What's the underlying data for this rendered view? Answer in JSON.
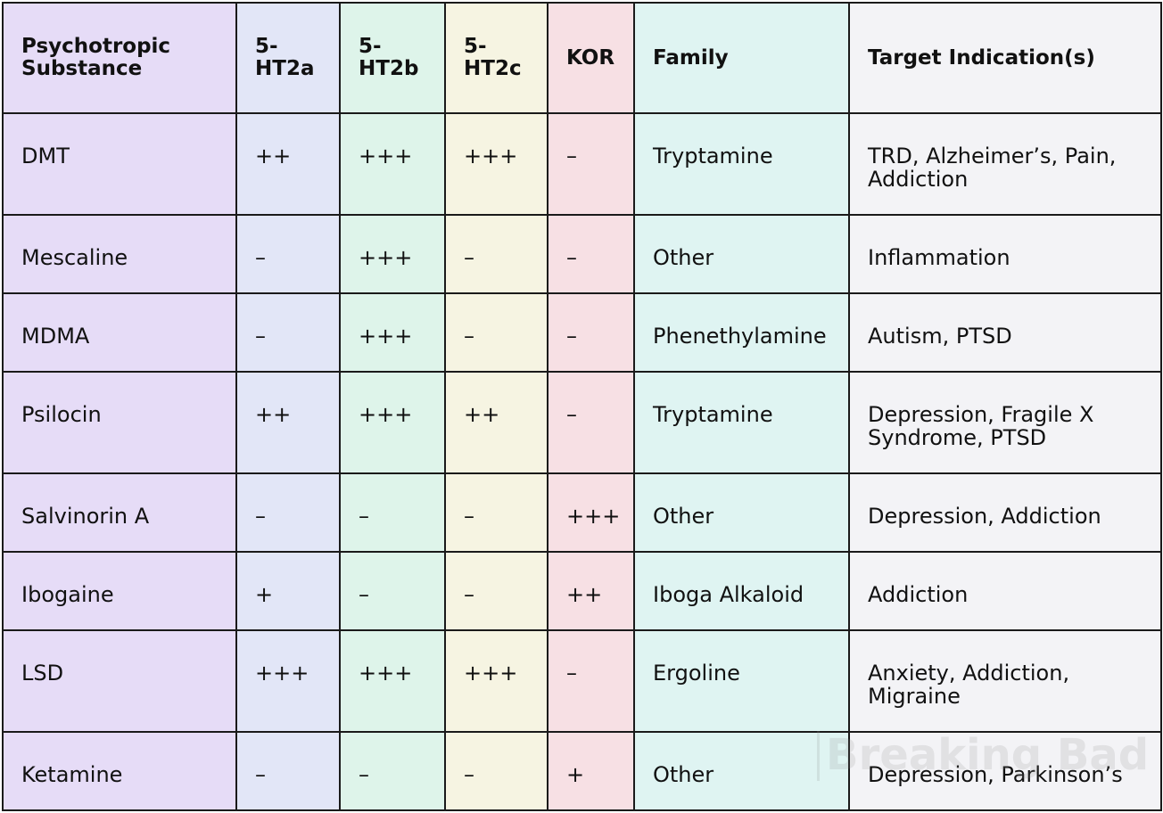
{
  "headers": {
    "substance": "Psychotropic Substance",
    "ht2a": "5-HT2a",
    "ht2b": "5-HT2b",
    "ht2c": "5-HT2c",
    "kor": "KOR",
    "family": "Family",
    "indication": "Target Indication(s)"
  },
  "rows": [
    {
      "substance": "DMT",
      "ht2a": "++",
      "ht2b": "+++",
      "ht2c": "+++",
      "kor": "–",
      "family": "Tryptamine",
      "indication": "TRD, Alzheimer’s, Pain, Addiction"
    },
    {
      "substance": "Mescaline",
      "ht2a": "–",
      "ht2b": "+++",
      "ht2c": "–",
      "kor": "–",
      "family": "Other",
      "indication": "Inflammation"
    },
    {
      "substance": "MDMA",
      "ht2a": "–",
      "ht2b": "+++",
      "ht2c": "–",
      "kor": "–",
      "family": "Phenethylamine",
      "indication": "Autism, PTSD"
    },
    {
      "substance": "Psilocin",
      "ht2a": "++",
      "ht2b": "+++",
      "ht2c": "++",
      "kor": "–",
      "family": "Tryptamine",
      "indication": "Depression, Fragile X Syndrome, PTSD"
    },
    {
      "substance": "Salvinorin A",
      "ht2a": "–",
      "ht2b": "–",
      "ht2c": "–",
      "kor": "+++",
      "family": "Other",
      "indication": "Depression, Addiction"
    },
    {
      "substance": "Ibogaine",
      "ht2a": "+",
      "ht2b": "–",
      "ht2c": "–",
      "kor": "++",
      "family": "Iboga Alkaloid",
      "indication": "Addiction"
    },
    {
      "substance": "LSD",
      "ht2a": "+++",
      "ht2b": "+++",
      "ht2c": "+++",
      "kor": "–",
      "family": "Ergoline",
      "indication": "Anxiety, Addiction, Migraine"
    },
    {
      "substance": "Ketamine",
      "ht2a": "–",
      "ht2b": "–",
      "ht2c": "–",
      "kor": "+",
      "family": "Other",
      "indication": "Depression, Parkinson’s"
    }
  ],
  "watermark": "Breaking Bad",
  "colors": {
    "substance": "#e6dcf7",
    "ht2a": "#e2e6f7",
    "ht2b": "#def4ea",
    "ht2c": "#f6f4e2",
    "kor": "#f7e0e4",
    "family": "#dff4f2",
    "indication": "#f3f3f6",
    "border": "#1a1a1a"
  }
}
